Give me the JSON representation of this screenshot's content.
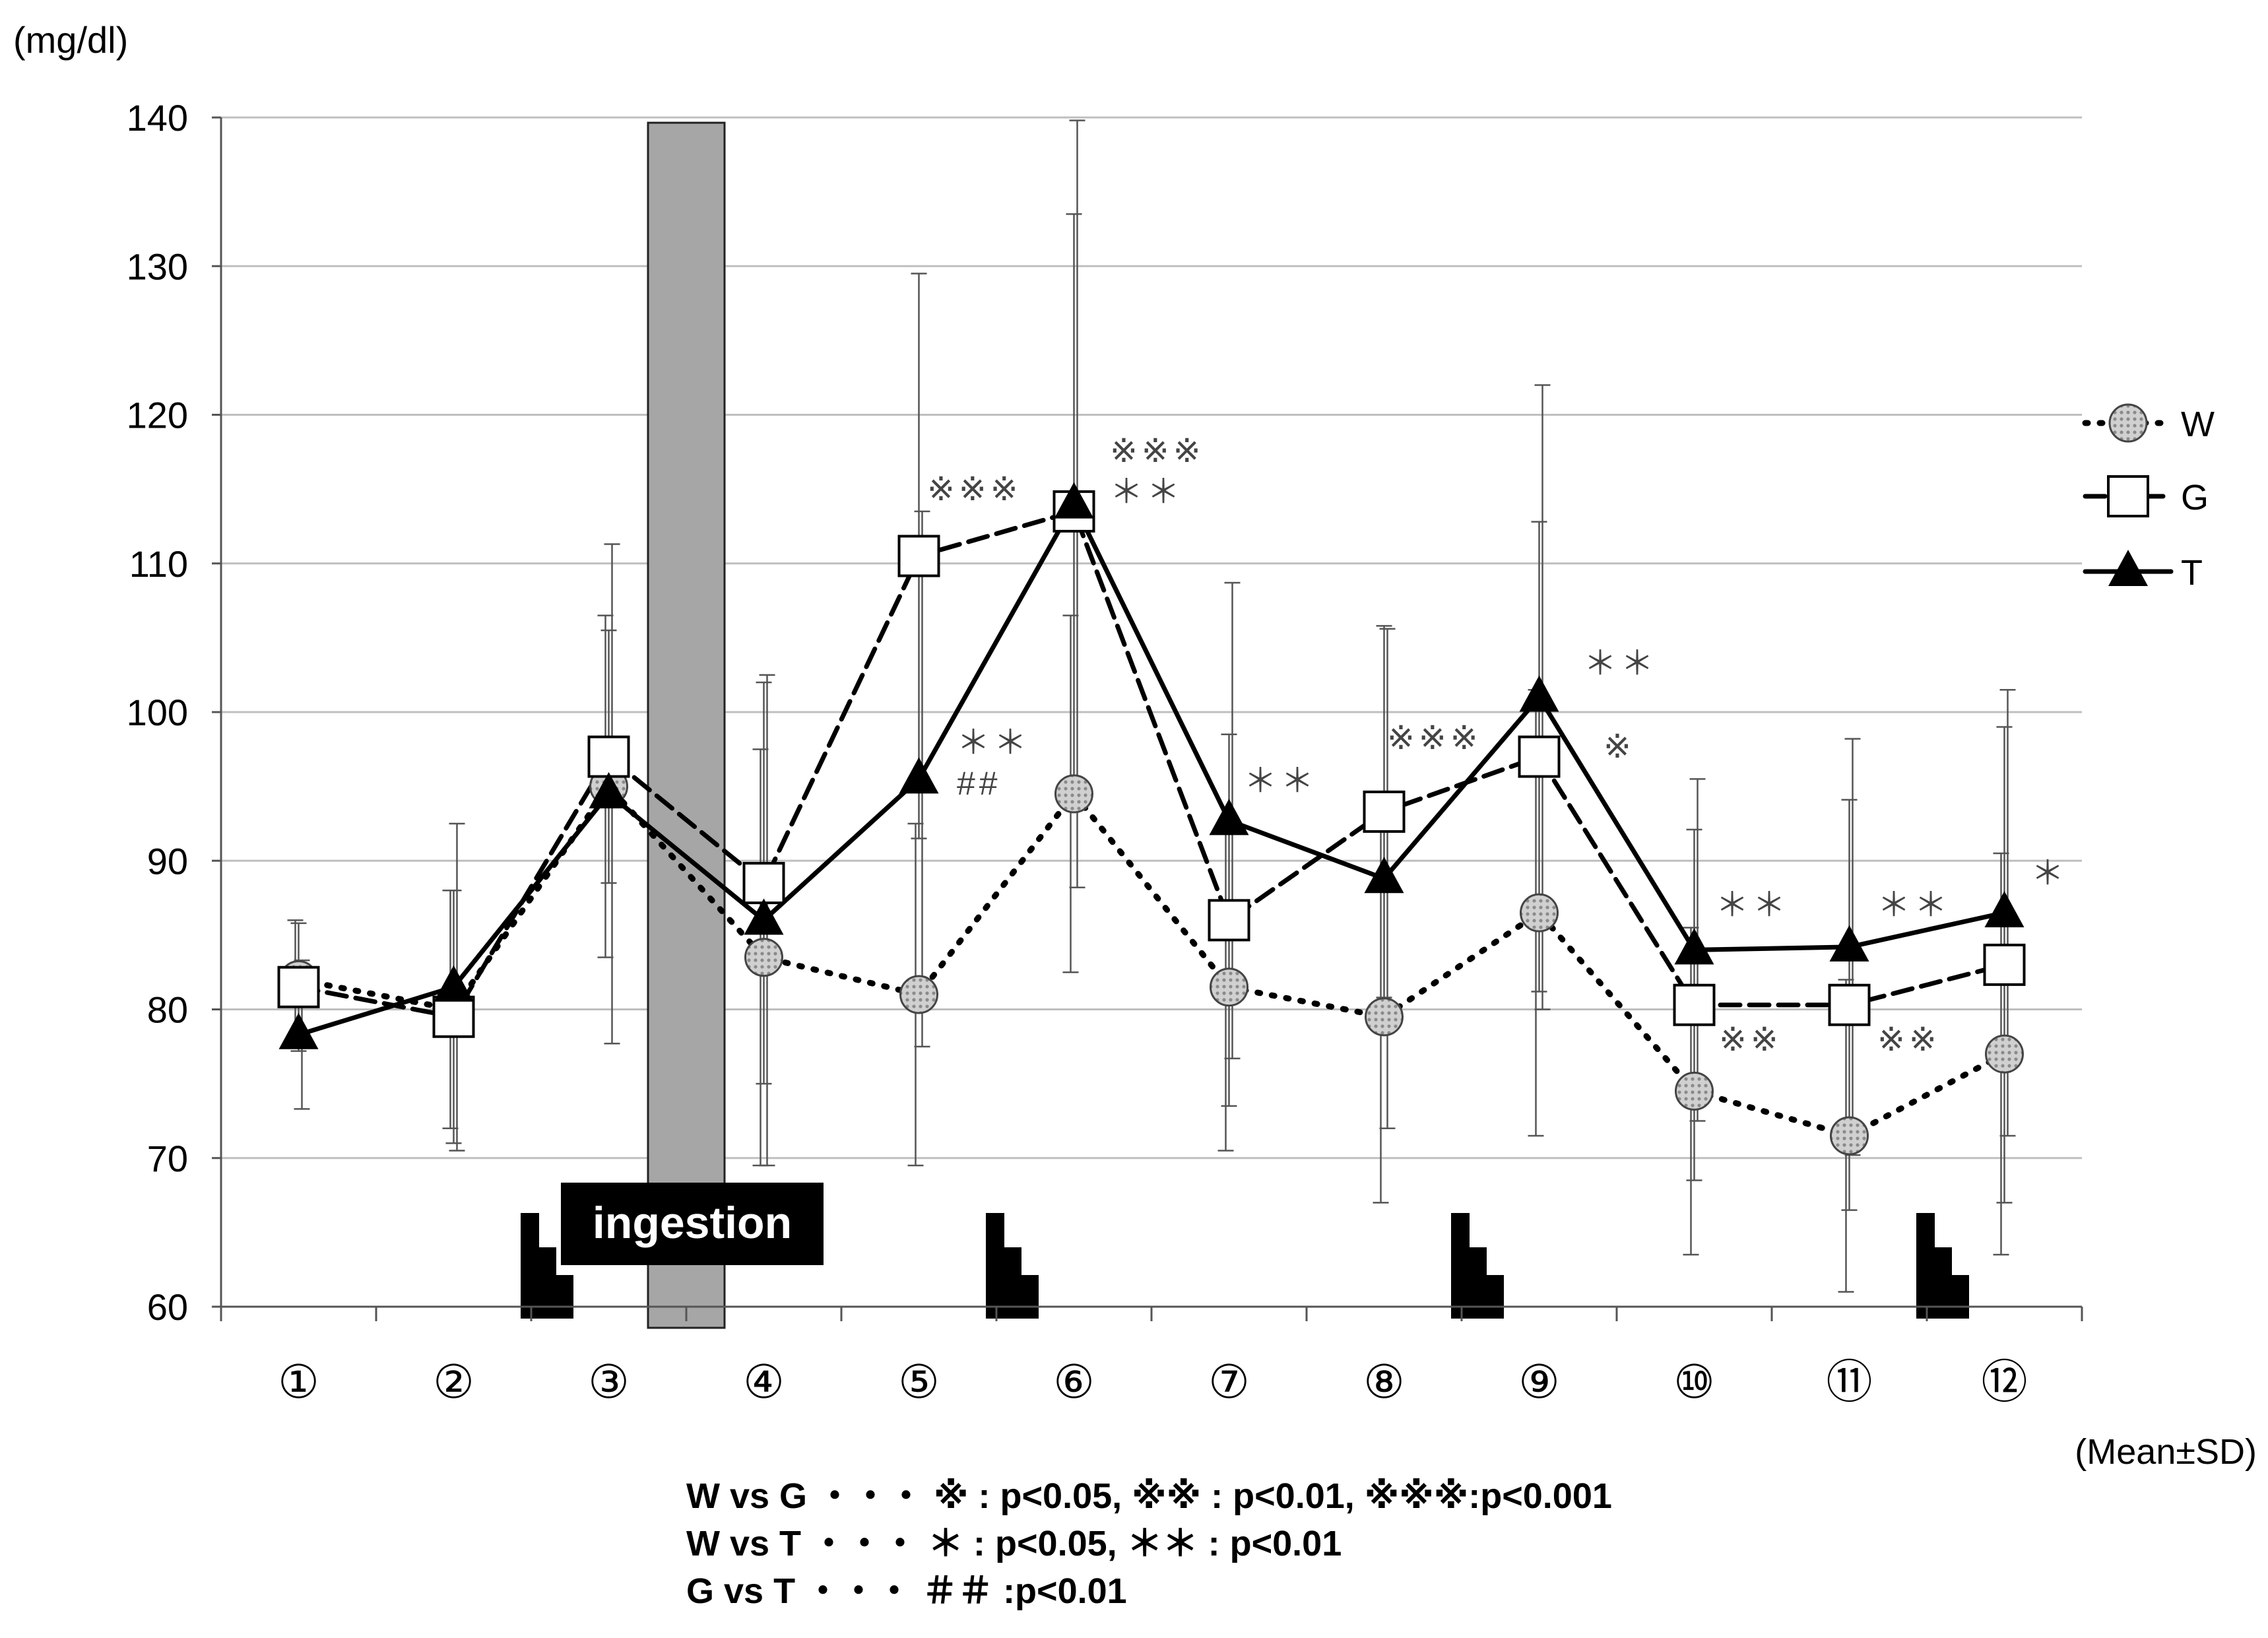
{
  "chart_data": {
    "type": "line",
    "unit_label": "(mg/dl)",
    "note": "(Mean±SD)",
    "ylim": [
      60,
      140
    ],
    "yticks": [
      60,
      70,
      80,
      90,
      100,
      110,
      120,
      130,
      140
    ],
    "grid": true,
    "categories": [
      "①",
      "②",
      "③",
      "④",
      "⑤",
      "⑥",
      "⑦",
      "⑧",
      "⑨",
      "⑩",
      "⑪",
      "⑫"
    ],
    "series": [
      {
        "name": "W",
        "line": "dotted",
        "marker": "hatched-circle",
        "values": [
          82,
          80,
          95,
          83.5,
          81,
          94.5,
          81.5,
          79.5,
          86.5,
          74.5,
          71.5,
          77
        ],
        "sd": [
          4,
          8,
          11.5,
          14,
          11.5,
          12,
          11,
          12.5,
          15,
          11,
          10.5,
          13.5
        ]
      },
      {
        "name": "G",
        "line": "dashed",
        "marker": "open-square",
        "values": [
          81.5,
          79.5,
          97,
          88.5,
          110.5,
          113.5,
          86,
          93.3,
          97,
          80.3,
          80.3,
          83
        ],
        "sd": [
          4.3,
          8.5,
          8.5,
          13.5,
          19,
          20,
          12.5,
          12.5,
          15.8,
          11.8,
          13.8,
          16
        ]
      },
      {
        "name": "T",
        "line": "solid",
        "marker": "filled-triangle",
        "values": [
          78.3,
          81.5,
          94.5,
          86,
          95.5,
          114,
          92.7,
          88.8,
          101,
          84,
          84.2,
          86.5
        ],
        "sd": [
          5,
          11,
          16.8,
          16.5,
          18,
          25.8,
          16,
          16.8,
          21,
          11.5,
          14,
          15
        ]
      }
    ],
    "significance_marks": [
      {
        "category": "⑤",
        "lines": [
          "※※※"
        ]
      },
      {
        "category": "⑤",
        "lines": [
          "＊＊",
          "##"
        ]
      },
      {
        "category": "⑥",
        "lines": [
          "※※※",
          "＊＊"
        ]
      },
      {
        "category": "⑦",
        "lines": [
          "＊＊"
        ]
      },
      {
        "category": "⑧",
        "lines": [
          "※※※"
        ]
      },
      {
        "category": "⑨",
        "lines": [
          "＊＊"
        ]
      },
      {
        "category": "⑨",
        "lines": [
          "※"
        ]
      },
      {
        "category": "⑩",
        "lines": [
          "＊＊"
        ]
      },
      {
        "category": "⑩",
        "lines": [
          "※※"
        ]
      },
      {
        "category": "⑪",
        "lines": [
          "＊＊"
        ]
      },
      {
        "category": "⑪",
        "lines": [
          "※※"
        ]
      },
      {
        "category": "⑫",
        "lines": [
          "＊"
        ]
      }
    ],
    "ingestion_label": "ingestion",
    "meal_marker_count": 4,
    "footnotes": [
      "W vs G ・・・ ※ : p<0.05, ※※ : p<0.01, ※※※:p<0.001",
      "W vs T ・・・ ＊ : p<0.05, ＊＊ : p<0.01",
      "G vs T  ・・・ ＃＃ :p<0.01"
    ]
  },
  "colors": {
    "line": "#000000",
    "grid": "#bfbfbf",
    "ingestion_bar": "#a6a6a6",
    "w_marker": "#c8c8c8",
    "errorbar": "#555555",
    "text": "#000000",
    "sig_mark": "#444444"
  }
}
